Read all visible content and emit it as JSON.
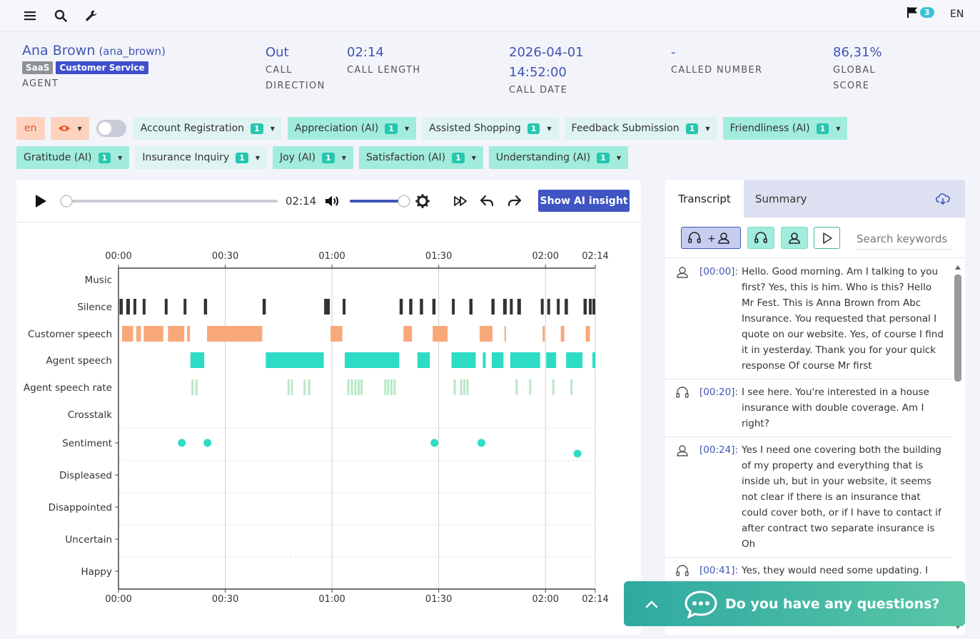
{
  "header": {
    "lang": "EN",
    "flag_count": "3"
  },
  "agent": {
    "name": "Ana Brown",
    "username": "(ana_brown)",
    "tags": [
      "SaaS",
      "Customer Service"
    ],
    "caption": "AGENT"
  },
  "meta": {
    "direction": {
      "value": "Out",
      "caption1": "CALL",
      "caption2": "DIRECTION"
    },
    "length": {
      "value": "02:14",
      "caption": "CALL LENGTH"
    },
    "date": {
      "value1": "2026-04-01",
      "value2": "14:52:00",
      "caption": "CALL DATE"
    },
    "called": {
      "value": "-",
      "caption": "CALLED NUMBER"
    },
    "score": {
      "value": "86,31%",
      "caption1": "GLOBAL",
      "caption2": "SCORE"
    }
  },
  "filters": {
    "lang": "en",
    "chips": [
      {
        "label": "Account Registration",
        "count": "1",
        "ai": false
      },
      {
        "label": "Appreciation (AI)",
        "count": "1",
        "ai": true
      },
      {
        "label": "Assisted Shopping",
        "count": "1",
        "ai": false
      },
      {
        "label": "Feedback Submission",
        "count": "1",
        "ai": false
      },
      {
        "label": "Friendliness (AI)",
        "count": "1",
        "ai": true
      },
      {
        "label": "Gratitude (AI)",
        "count": "1",
        "ai": true
      },
      {
        "label": "Insurance Inquiry",
        "count": "1",
        "ai": false
      },
      {
        "label": "Joy (AI)",
        "count": "1",
        "ai": true
      },
      {
        "label": "Satisfaction (AI)",
        "count": "1",
        "ai": true
      },
      {
        "label": "Understanding (AI)",
        "count": "1",
        "ai": true
      }
    ]
  },
  "player": {
    "time": "02:14",
    "ai_button": "Show AI insight",
    "progress": 0,
    "volume": 1.0
  },
  "chart_data": {
    "type": "timeline",
    "x_ticks": [
      "00:00",
      "00:30",
      "01:00",
      "01:30",
      "02:00",
      "02:14"
    ],
    "x_tick_values": [
      0,
      30,
      60,
      90,
      120,
      134
    ],
    "xlim": [
      0,
      134
    ],
    "rows": [
      "Music",
      "Silence",
      "Customer speech",
      "Agent speech",
      "Agent speech rate",
      "Crosstalk",
      "Sentiment",
      "Displeased",
      "Disappointed",
      "Uncertain",
      "Happy"
    ],
    "colors": {
      "silence": "#333333",
      "customer": "#f9a87a",
      "agent": "#2ddcc4",
      "rate": "#b8e8c6",
      "sentiment": "#2ddcc4"
    },
    "silence": [
      [
        0.3,
        1.2
      ],
      [
        2.2,
        3.2
      ],
      [
        4.2,
        5.0
      ],
      [
        6.8,
        7.6
      ],
      [
        13.0,
        13.8
      ],
      [
        18.3,
        19.1
      ],
      [
        24.0,
        24.9
      ],
      [
        40.5,
        41.4
      ],
      [
        57.8,
        59.4
      ],
      [
        63.0,
        63.8
      ],
      [
        79.0,
        79.9
      ],
      [
        81.7,
        82.6
      ],
      [
        84.7,
        85.6
      ],
      [
        88.2,
        89.1
      ],
      [
        93.7,
        94.5
      ],
      [
        98.6,
        99.5
      ],
      [
        104.8,
        105.7
      ],
      [
        108.1,
        109.1
      ],
      [
        110.0,
        110.8
      ],
      [
        112.1,
        113.1
      ],
      [
        118.7,
        119.5
      ],
      [
        120.5,
        121.3
      ],
      [
        123.2,
        124.0
      ],
      [
        125.4,
        126.3
      ],
      [
        130.7,
        131.6
      ],
      [
        132.2,
        133.0
      ],
      [
        133.2,
        134.0
      ]
    ],
    "customer": [
      [
        1.0,
        4.1
      ],
      [
        5.0,
        6.3
      ],
      [
        7.1,
        12.6
      ],
      [
        13.9,
        18.5
      ],
      [
        19.3,
        20.1
      ],
      [
        24.9,
        40.4
      ],
      [
        59.6,
        62.9
      ],
      [
        80.1,
        82.5
      ],
      [
        88.3,
        92.5
      ],
      [
        101.5,
        105.1
      ],
      [
        108.5,
        108.9
      ],
      [
        119.2,
        119.8
      ],
      [
        124.3,
        125.3
      ],
      [
        131.3,
        132.5
      ]
    ],
    "agent": [
      [
        20.2,
        24.1
      ],
      [
        41.4,
        57.7
      ],
      [
        63.6,
        78.9
      ],
      [
        84.0,
        87.5
      ],
      [
        93.6,
        100.4
      ],
      [
        102.4,
        103.2
      ],
      [
        104.9,
        108.2
      ],
      [
        110.1,
        118.5
      ],
      [
        120.2,
        123.0
      ],
      [
        125.8,
        130.4
      ],
      [
        133.2,
        134.0
      ]
    ],
    "rate": [
      [
        20.5,
        21.1
      ],
      [
        21.6,
        22.2
      ],
      [
        47.5,
        48.1
      ],
      [
        48.5,
        49.0
      ],
      [
        52.0,
        52.6
      ],
      [
        53.3,
        53.9
      ],
      [
        64.3,
        64.9
      ],
      [
        65.3,
        65.9
      ],
      [
        66.3,
        66.9
      ],
      [
        67.2,
        67.8
      ],
      [
        68.0,
        68.6
      ],
      [
        74.7,
        75.3
      ],
      [
        75.5,
        76.1
      ],
      [
        76.4,
        77.0
      ],
      [
        77.3,
        77.9
      ],
      [
        94.2,
        94.8
      ],
      [
        96.0,
        96.6
      ],
      [
        96.9,
        97.5
      ],
      [
        97.8,
        98.4
      ],
      [
        111.6,
        112.2
      ],
      [
        115.4,
        116.0
      ],
      [
        121.9,
        122.5
      ],
      [
        127.0,
        127.6
      ]
    ],
    "sentiment": [
      [
        17.8,
        0.2
      ],
      [
        25.0,
        0.2
      ],
      [
        88.8,
        0.2
      ],
      [
        102.0,
        0.2
      ],
      [
        129.0,
        -0.3
      ]
    ]
  },
  "transcript": {
    "tabs": [
      "Transcript",
      "Summary"
    ],
    "search_placeholder": "Search keywords",
    "entries": [
      {
        "speaker": "customer",
        "ts": "[00:00]:",
        "text": "Hello. Good morning. Am I talking to you first? Yes, this is him. Who is this? Hello Mr Fest. This is Anna Brown from Abc Insurance. You requested that personal I quote on our website. Yes, of course I find it in yesterday. Thank you for your quick response Of course Mr first"
      },
      {
        "speaker": "agent",
        "ts": "[00:20]:",
        "text": "I see here. You're interested in a house insurance with double coverage. Am I right?"
      },
      {
        "speaker": "customer",
        "ts": "[00:24]:",
        "text": "Yes I need one covering both the building of my property and everything that is inside uh, but in your website, it seems not clear if there is an insurance that could cover both, or if I have to contact if after contract two separate insurance is Oh"
      },
      {
        "speaker": "agent",
        "ts": "[00:41]:",
        "text": "Yes, they would need some updating. I"
      }
    ]
  },
  "chat": {
    "label": "Do you have any questions?"
  }
}
